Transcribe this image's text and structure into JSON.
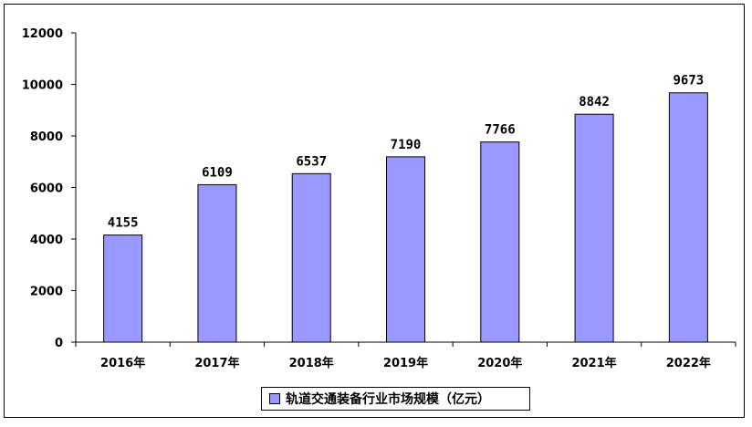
{
  "chart_data": {
    "type": "bar",
    "categories": [
      "2016年",
      "2017年",
      "2018年",
      "2019年",
      "2020年",
      "2021年",
      "2022年"
    ],
    "series": [
      {
        "name": "轨道交通装备行业市场规模（亿元）",
        "values": [
          4155,
          6109,
          6537,
          7190,
          7766,
          8842,
          9673
        ],
        "color": "#9999ff"
      }
    ],
    "ylim": [
      0,
      12000
    ],
    "yticks": [
      "0",
      "2000",
      "4000",
      "6000",
      "8000",
      "10000",
      "12000"
    ],
    "grid": false,
    "legend": "bottom",
    "show_data_labels": true
  }
}
